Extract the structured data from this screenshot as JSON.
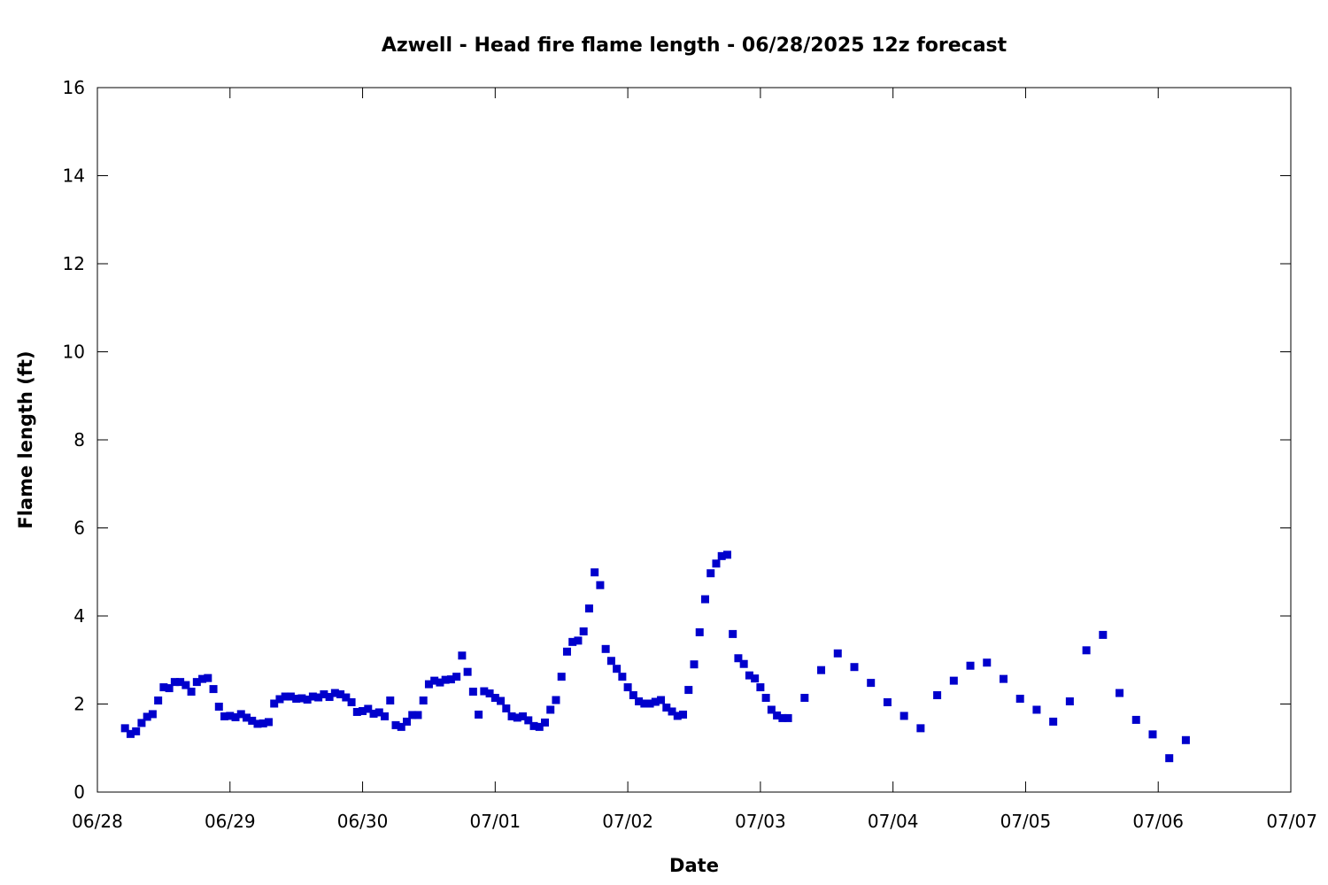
{
  "chart_data": {
    "type": "scatter",
    "title": "Azwell - Head fire flame length - 06/28/2025 12z forecast",
    "xlabel": "Date",
    "ylabel": "Flame length (ft)",
    "xlim": [
      "2025-06-28",
      "2025-07-07"
    ],
    "ylim": [
      0,
      16
    ],
    "x_ticks": [
      "06/28",
      "06/29",
      "06/30",
      "07/01",
      "07/02",
      "07/03",
      "07/04",
      "07/05",
      "07/06",
      "07/07"
    ],
    "y_ticks": [
      "0",
      "2",
      "4",
      "6",
      "8",
      "10",
      "12",
      "14",
      "16"
    ],
    "grid": false,
    "legend": "none",
    "marker_color": "#0000cc",
    "series": [
      {
        "points": [
          [
            "2025-06-28 05:00",
            1.45
          ],
          [
            "2025-06-28 06:00",
            1.32
          ],
          [
            "2025-06-28 07:00",
            1.38
          ],
          [
            "2025-06-28 08:00",
            1.57
          ],
          [
            "2025-06-28 09:00",
            1.71
          ],
          [
            "2025-06-28 10:00",
            1.77
          ],
          [
            "2025-06-28 11:00",
            2.08
          ],
          [
            "2025-06-28 12:00",
            2.38
          ],
          [
            "2025-06-28 13:00",
            2.36
          ],
          [
            "2025-06-28 14:00",
            2.5
          ],
          [
            "2025-06-28 15:00",
            2.5
          ],
          [
            "2025-06-28 16:00",
            2.43
          ],
          [
            "2025-06-28 17:00",
            2.28
          ],
          [
            "2025-06-28 18:00",
            2.5
          ],
          [
            "2025-06-28 19:00",
            2.57
          ],
          [
            "2025-06-28 20:00",
            2.59
          ],
          [
            "2025-06-28 21:00",
            2.34
          ],
          [
            "2025-06-28 22:00",
            1.94
          ],
          [
            "2025-06-28 23:00",
            1.72
          ],
          [
            "2025-06-29 00:00",
            1.73
          ],
          [
            "2025-06-29 01:00",
            1.7
          ],
          [
            "2025-06-29 02:00",
            1.77
          ],
          [
            "2025-06-29 03:00",
            1.69
          ],
          [
            "2025-06-29 04:00",
            1.62
          ],
          [
            "2025-06-29 05:00",
            1.55
          ],
          [
            "2025-06-29 06:00",
            1.56
          ],
          [
            "2025-06-29 07:00",
            1.59
          ],
          [
            "2025-06-29 08:00",
            2.01
          ],
          [
            "2025-06-29 09:00",
            2.11
          ],
          [
            "2025-06-29 10:00",
            2.17
          ],
          [
            "2025-06-29 11:00",
            2.17
          ],
          [
            "2025-06-29 12:00",
            2.12
          ],
          [
            "2025-06-29 13:00",
            2.13
          ],
          [
            "2025-06-29 14:00",
            2.1
          ],
          [
            "2025-06-29 15:00",
            2.17
          ],
          [
            "2025-06-29 16:00",
            2.15
          ],
          [
            "2025-06-29 17:00",
            2.22
          ],
          [
            "2025-06-29 18:00",
            2.16
          ],
          [
            "2025-06-29 19:00",
            2.25
          ],
          [
            "2025-06-29 20:00",
            2.22
          ],
          [
            "2025-06-29 21:00",
            2.15
          ],
          [
            "2025-06-29 22:00",
            2.04
          ],
          [
            "2025-06-29 23:00",
            1.82
          ],
          [
            "2025-06-30 00:00",
            1.84
          ],
          [
            "2025-06-30 01:00",
            1.89
          ],
          [
            "2025-06-30 02:00",
            1.78
          ],
          [
            "2025-06-30 03:00",
            1.81
          ],
          [
            "2025-06-30 04:00",
            1.72
          ],
          [
            "2025-06-30 05:00",
            2.08
          ],
          [
            "2025-06-30 06:00",
            1.52
          ],
          [
            "2025-06-30 07:00",
            1.48
          ],
          [
            "2025-06-30 08:00",
            1.6
          ],
          [
            "2025-06-30 09:00",
            1.75
          ],
          [
            "2025-06-30 10:00",
            1.75
          ],
          [
            "2025-06-30 11:00",
            2.08
          ],
          [
            "2025-06-30 12:00",
            2.45
          ],
          [
            "2025-06-30 13:00",
            2.53
          ],
          [
            "2025-06-30 14:00",
            2.49
          ],
          [
            "2025-06-30 15:00",
            2.55
          ],
          [
            "2025-06-30 16:00",
            2.56
          ],
          [
            "2025-06-30 17:00",
            2.62
          ],
          [
            "2025-06-30 18:00",
            3.1
          ],
          [
            "2025-06-30 19:00",
            2.73
          ],
          [
            "2025-06-30 20:00",
            2.28
          ],
          [
            "2025-06-30 21:00",
            1.76
          ],
          [
            "2025-06-30 22:00",
            2.29
          ],
          [
            "2025-06-30 23:00",
            2.24
          ],
          [
            "2025-07-01 00:00",
            2.14
          ],
          [
            "2025-07-01 01:00",
            2.07
          ],
          [
            "2025-07-01 02:00",
            1.9
          ],
          [
            "2025-07-01 03:00",
            1.72
          ],
          [
            "2025-07-01 04:00",
            1.69
          ],
          [
            "2025-07-01 05:00",
            1.72
          ],
          [
            "2025-07-01 06:00",
            1.63
          ],
          [
            "2025-07-01 07:00",
            1.5
          ],
          [
            "2025-07-01 08:00",
            1.48
          ],
          [
            "2025-07-01 09:00",
            1.58
          ],
          [
            "2025-07-01 10:00",
            1.87
          ],
          [
            "2025-07-01 11:00",
            2.09
          ],
          [
            "2025-07-01 12:00",
            2.62
          ],
          [
            "2025-07-01 13:00",
            3.19
          ],
          [
            "2025-07-01 14:00",
            3.41
          ],
          [
            "2025-07-01 15:00",
            3.44
          ],
          [
            "2025-07-01 16:00",
            3.65
          ],
          [
            "2025-07-01 17:00",
            4.17
          ],
          [
            "2025-07-01 18:00",
            4.99
          ],
          [
            "2025-07-01 19:00",
            4.7
          ],
          [
            "2025-07-01 20:00",
            3.25
          ],
          [
            "2025-07-01 21:00",
            2.98
          ],
          [
            "2025-07-01 22:00",
            2.8
          ],
          [
            "2025-07-01 23:00",
            2.62
          ],
          [
            "2025-07-02 00:00",
            2.38
          ],
          [
            "2025-07-02 01:00",
            2.2
          ],
          [
            "2025-07-02 02:00",
            2.06
          ],
          [
            "2025-07-02 03:00",
            2.01
          ],
          [
            "2025-07-02 04:00",
            2.01
          ],
          [
            "2025-07-02 05:00",
            2.05
          ],
          [
            "2025-07-02 06:00",
            2.09
          ],
          [
            "2025-07-02 07:00",
            1.92
          ],
          [
            "2025-07-02 08:00",
            1.83
          ],
          [
            "2025-07-02 09:00",
            1.73
          ],
          [
            "2025-07-02 10:00",
            1.76
          ],
          [
            "2025-07-02 11:00",
            2.32
          ],
          [
            "2025-07-02 12:00",
            2.9
          ],
          [
            "2025-07-02 13:00",
            3.63
          ],
          [
            "2025-07-02 14:00",
            4.38
          ],
          [
            "2025-07-02 15:00",
            4.97
          ],
          [
            "2025-07-02 16:00",
            5.19
          ],
          [
            "2025-07-02 17:00",
            5.36
          ],
          [
            "2025-07-02 18:00",
            5.39
          ],
          [
            "2025-07-02 19:00",
            3.59
          ],
          [
            "2025-07-02 20:00",
            3.04
          ],
          [
            "2025-07-02 21:00",
            2.91
          ],
          [
            "2025-07-02 22:00",
            2.65
          ],
          [
            "2025-07-02 23:00",
            2.58
          ],
          [
            "2025-07-03 00:00",
            2.38
          ],
          [
            "2025-07-03 01:00",
            2.14
          ],
          [
            "2025-07-03 02:00",
            1.87
          ],
          [
            "2025-07-03 03:00",
            1.74
          ],
          [
            "2025-07-03 04:00",
            1.68
          ],
          [
            "2025-07-03 05:00",
            1.68
          ],
          [
            "2025-07-03 08:00",
            2.14
          ],
          [
            "2025-07-03 11:00",
            2.77
          ],
          [
            "2025-07-03 14:00",
            3.15
          ],
          [
            "2025-07-03 17:00",
            2.84
          ],
          [
            "2025-07-03 20:00",
            2.48
          ],
          [
            "2025-07-03 23:00",
            2.04
          ],
          [
            "2025-07-04 02:00",
            1.73
          ],
          [
            "2025-07-04 05:00",
            1.45
          ],
          [
            "2025-07-04 08:00",
            2.2
          ],
          [
            "2025-07-04 11:00",
            2.53
          ],
          [
            "2025-07-04 14:00",
            2.87
          ],
          [
            "2025-07-04 17:00",
            2.94
          ],
          [
            "2025-07-04 20:00",
            2.57
          ],
          [
            "2025-07-04 23:00",
            2.12
          ],
          [
            "2025-07-05 02:00",
            1.87
          ],
          [
            "2025-07-05 05:00",
            1.6
          ],
          [
            "2025-07-05 08:00",
            2.06
          ],
          [
            "2025-07-05 11:00",
            3.22
          ],
          [
            "2025-07-05 14:00",
            3.57
          ],
          [
            "2025-07-05 17:00",
            2.25
          ],
          [
            "2025-07-05 20:00",
            1.64
          ],
          [
            "2025-07-05 23:00",
            1.31
          ],
          [
            "2025-07-06 02:00",
            0.77
          ],
          [
            "2025-07-06 05:00",
            1.18
          ]
        ]
      }
    ]
  }
}
